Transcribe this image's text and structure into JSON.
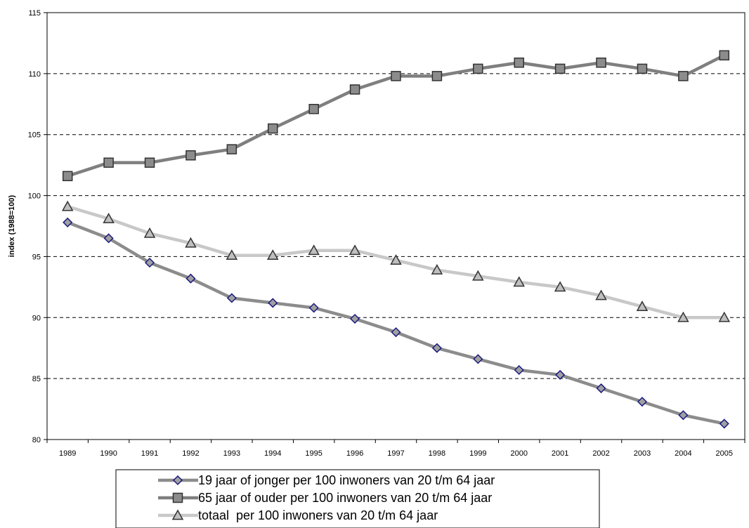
{
  "chart_data": {
    "type": "line",
    "title": "",
    "xlabel": "",
    "ylabel": "index (1988=100)",
    "ylim": [
      80,
      115
    ],
    "yticks": [
      80,
      85,
      90,
      95,
      100,
      105,
      110,
      115
    ],
    "grid": "horizontal dashed",
    "legend_position": "bottom",
    "x": [
      "1989",
      "1990",
      "1991",
      "1992",
      "1993",
      "1994",
      "1995",
      "1996",
      "1997",
      "1998",
      "1999",
      "2000",
      "2001",
      "2002",
      "2003",
      "2004",
      "2005"
    ],
    "series": [
      {
        "name": "19 jaar of jonger per 100 inwoners van 20 t/m 64 jaar",
        "marker": "diamond",
        "line_color": "#8c8c8c",
        "marker_fill": "#a0a0a0",
        "marker_stroke": "#1a1a80",
        "values": [
          97.8,
          96.5,
          94.5,
          93.2,
          91.6,
          91.2,
          90.8,
          89.9,
          88.8,
          87.5,
          86.6,
          85.7,
          85.3,
          84.2,
          83.1,
          82.0,
          81.3
        ]
      },
      {
        "name": "65 jaar of ouder per 100 inwoners van 20 t/m 64 jaar",
        "marker": "square",
        "line_color": "#7f7f7f",
        "marker_fill": "#8c8c8c",
        "marker_stroke": "#333333",
        "values": [
          101.6,
          102.7,
          102.7,
          103.3,
          103.8,
          105.5,
          107.1,
          108.7,
          109.8,
          109.8,
          110.4,
          110.9,
          110.4,
          110.9,
          110.4,
          109.8,
          111.5
        ]
      },
      {
        "name": "totaal  per 100 inwoners van 20 t/m 64 jaar",
        "marker": "triangle",
        "line_color": "#c8c8c8",
        "marker_fill": "#bfbfbf",
        "marker_stroke": "#333333",
        "values": [
          99.1,
          98.1,
          96.9,
          96.1,
          95.1,
          95.1,
          95.5,
          95.5,
          94.7,
          93.9,
          93.4,
          92.9,
          92.5,
          91.8,
          90.9,
          90.0,
          90.0
        ]
      }
    ]
  }
}
